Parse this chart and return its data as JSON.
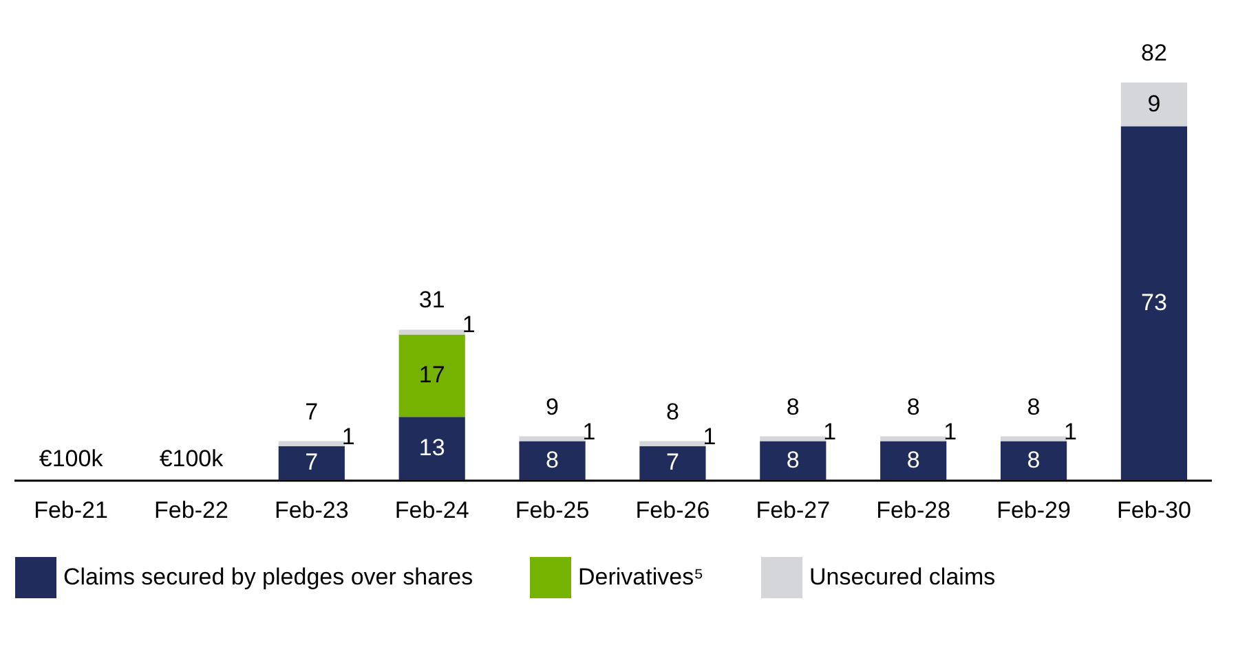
{
  "chart_data": {
    "type": "bar",
    "stacked": true,
    "data_labels": true,
    "legend": "bottom",
    "grid": false,
    "categories": [
      "Feb-21",
      "Feb-22",
      "Feb-23",
      "Feb-24",
      "Feb-25",
      "Feb-26",
      "Feb-27",
      "Feb-28",
      "Feb-29",
      "Feb-30"
    ],
    "series": [
      {
        "name": "Claims secured by pledges over shares",
        "color": "#1f2c5c",
        "values": [
          null,
          null,
          7,
          13,
          8,
          7,
          8,
          8,
          8,
          73
        ]
      },
      {
        "name": "Derivatives⁵",
        "color": "#76b300",
        "values": [
          null,
          null,
          null,
          17,
          null,
          null,
          null,
          null,
          null,
          null
        ]
      },
      {
        "name": "Unsecured claims",
        "color": "#d4d6d9",
        "values": [
          null,
          null,
          1,
          1,
          1,
          1,
          1,
          1,
          1,
          9
        ]
      }
    ],
    "annotations": [
      "€100k",
      "€100k"
    ],
    "totals": [
      null,
      null,
      "7",
      "31",
      "9",
      "8",
      "8",
      "8",
      "8",
      "82"
    ]
  }
}
